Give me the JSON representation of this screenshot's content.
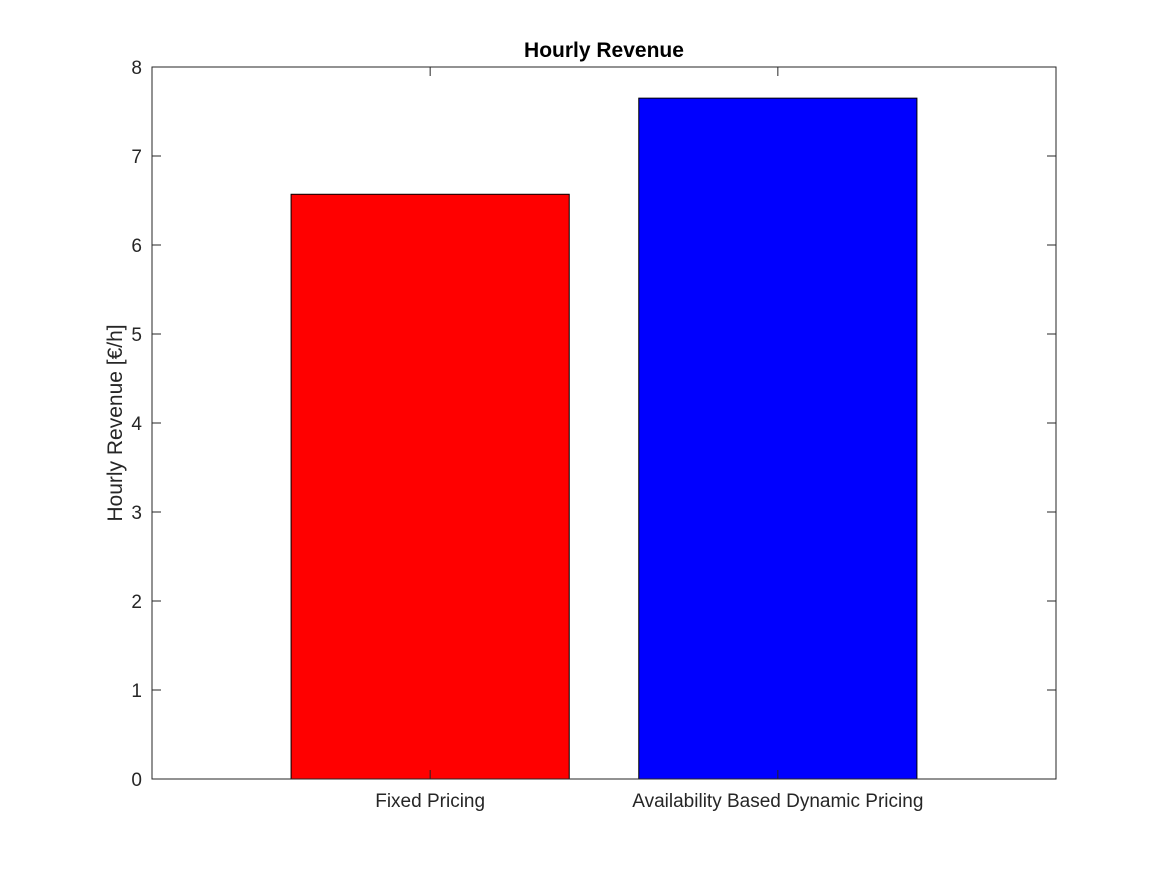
{
  "chart_data": {
    "type": "bar",
    "title": "Hourly Revenue",
    "xlabel": "",
    "ylabel": "Hourly Revenue [€/h]",
    "categories": [
      "Fixed Pricing",
      "Availability Based Dynamic Pricing"
    ],
    "values": [
      6.57,
      7.65
    ],
    "bar_colors": [
      "#ff0000",
      "#0000ff"
    ],
    "ylim": [
      0,
      8
    ],
    "yticks": [
      "0",
      "1",
      "2",
      "3",
      "4",
      "5",
      "6",
      "7",
      "8"
    ],
    "grid": false,
    "legend": false
  }
}
